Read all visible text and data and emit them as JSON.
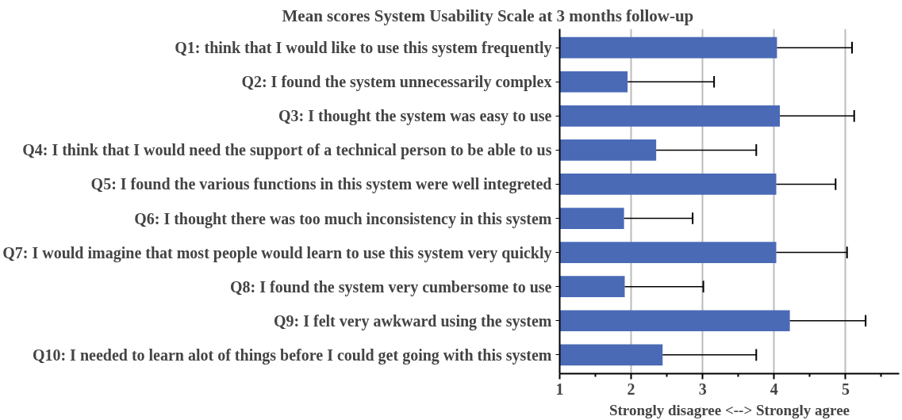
{
  "chart_data": {
    "type": "bar",
    "orientation": "horizontal",
    "title": "Mean scores System Usability Scale at 3 months follow-up",
    "xlabel": "Strongly disagree <--> Strongly agree",
    "categories": [
      "Q1: think that I would like to use this system frequently",
      "Q2: I found the system unnecessarily complex",
      "Q3: I thought the system was easy to use",
      "Q4: I think that I would need the support of a technical person to be able to us",
      "Q5: I found the various functions in this system were well integreted",
      "Q6: I thought there was too much inconsistency in this system",
      "Q7: I would imagine that most people would learn to use this system very quickly",
      "Q8: I found the system very cumbersome to use",
      "Q9: I felt very awkward using the system",
      "Q10: I needed to learn alot of things before I could get going with this system"
    ],
    "values": [
      4.04,
      1.95,
      4.08,
      2.35,
      4.03,
      1.9,
      4.03,
      1.91,
      4.22,
      2.44
    ],
    "errors": [
      [
        4.04,
        5.09
      ],
      [
        1.95,
        3.16
      ],
      [
        4.08,
        5.12
      ],
      [
        2.35,
        3.75
      ],
      [
        4.03,
        4.86
      ],
      [
        1.9,
        2.86
      ],
      [
        4.03,
        5.02
      ],
      [
        1.91,
        3.01
      ],
      [
        4.22,
        5.28
      ],
      [
        2.44,
        3.75
      ]
    ],
    "color": "#4a6ab6",
    "xlim": [
      1,
      5.75
    ],
    "xticks": [
      1,
      {
        "value": 1.5,
        "label": null
      },
      2,
      {
        "value": 2.5,
        "label": null
      },
      3,
      {
        "value": 3.5,
        "label": null
      },
      4,
      {
        "value": 4.5,
        "label": null
      },
      5,
      {
        "value": 5.5,
        "label": null
      }
    ],
    "grid": "x"
  }
}
